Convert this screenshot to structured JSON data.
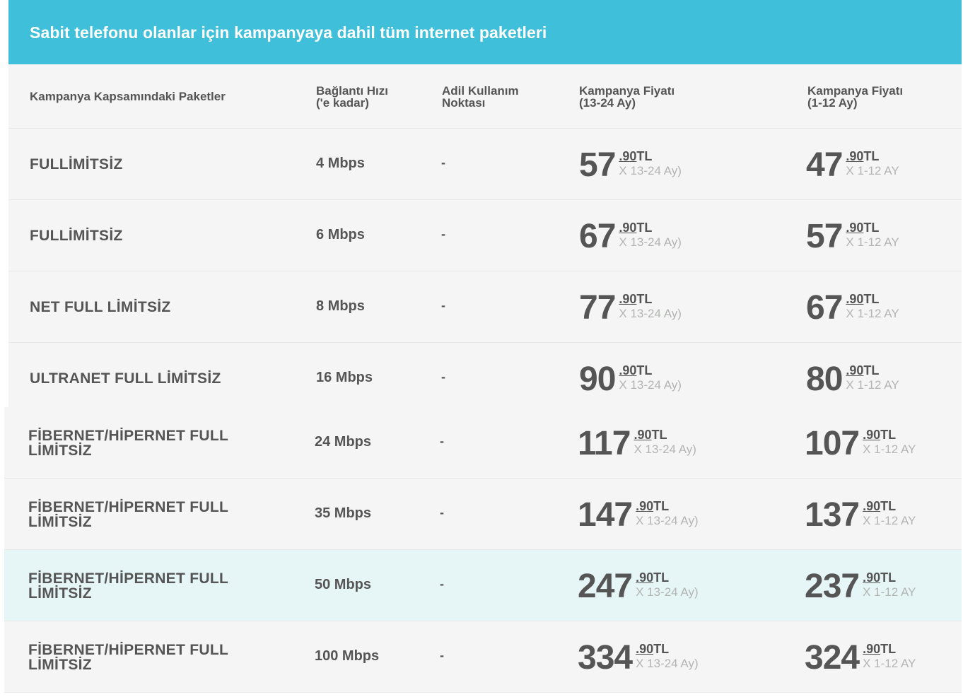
{
  "title": "Sabit telefonu olanlar için kampanyaya dahil tüm internet paketleri",
  "headers": {
    "package": "Kampanya Kapsamındaki Paketler",
    "speed": [
      "Bağlantı Hızı",
      "('e kadar)"
    ],
    "fair_use": [
      "Adil Kullanım",
      "Noktası"
    ],
    "price_13_24": [
      "Kampanya Fiyatı",
      "(13-24 Ay)"
    ],
    "price_1_12": [
      "Kampanya Fiyatı",
      "(1-12 Ay)"
    ]
  },
  "rows": [
    {
      "name": [
        "FULLİMİTSİZ"
      ],
      "speed": "4 Mbps",
      "fair_use": "-",
      "p1": {
        "int": "57",
        "dec": ".90",
        "cur": "TL",
        "term": "X 13-24 Ay)"
      },
      "p2": {
        "int": "47",
        "dec": ".90",
        "cur": "TL",
        "term": "X 1-12 AY"
      }
    },
    {
      "name": [
        "FULLİMİTSİZ"
      ],
      "speed": "6 Mbps",
      "fair_use": "-",
      "p1": {
        "int": "67",
        "dec": ".90",
        "cur": "TL",
        "term": "X 13-24 Ay)"
      },
      "p2": {
        "int": "57",
        "dec": ".90",
        "cur": "TL",
        "term": "X 1-12 AY"
      }
    },
    {
      "name": [
        "NET FULL LİMİTSİZ"
      ],
      "speed": "8 Mbps",
      "fair_use": "-",
      "p1": {
        "int": "77",
        "dec": ".90",
        "cur": "TL",
        "term": "X 13-24 Ay)"
      },
      "p2": {
        "int": "67",
        "dec": ".90",
        "cur": "TL",
        "term": "X 1-12 AY"
      }
    },
    {
      "name": [
        "ULTRANET FULL LİMİTSİZ"
      ],
      "speed": "16 Mbps",
      "fair_use": "-",
      "p1": {
        "int": "90",
        "dec": ".90",
        "cur": "TL",
        "term": "X 13-24 Ay)"
      },
      "p2": {
        "int": "80",
        "dec": ".90",
        "cur": "TL",
        "term": "X 1-12 AY"
      }
    },
    {
      "name": [
        "FİBERNET/HİPERNET FULL",
        "LİMİTSİZ"
      ],
      "speed": "24 Mbps",
      "fair_use": "-",
      "p1": {
        "int": "117",
        "dec": ".90",
        "cur": "TL",
        "term": "X 13-24 Ay)"
      },
      "p2": {
        "int": "107",
        "dec": ".90",
        "cur": "TL",
        "term": "X 1-12 AY"
      }
    },
    {
      "name": [
        "FİBERNET/HİPERNET FULL",
        "LİMİTSİZ"
      ],
      "speed": "35 Mbps",
      "fair_use": "-",
      "p1": {
        "int": "147",
        "dec": ".90",
        "cur": "TL",
        "term": "X 13-24 Ay)"
      },
      "p2": {
        "int": "137",
        "dec": ".90",
        "cur": "TL",
        "term": "X 1-12 AY"
      }
    },
    {
      "name": [
        "FİBERNET/HİPERNET FULL",
        "LİMİTSİZ"
      ],
      "speed": "50 Mbps",
      "fair_use": "-",
      "highlighted": true,
      "p1": {
        "int": "247",
        "dec": ".90",
        "cur": "TL",
        "term": "X 13-24 Ay)"
      },
      "p2": {
        "int": "237",
        "dec": ".90",
        "cur": "TL",
        "term": "X 1-12 AY"
      }
    },
    {
      "name": [
        "FİBERNET/HİPERNET FULL",
        "LİMİTSİZ"
      ],
      "speed": "100 Mbps",
      "fair_use": "-",
      "p1": {
        "int": "334",
        "dec": ".90",
        "cur": "TL",
        "term": "X 13-24 Ay)"
      },
      "p2": {
        "int": "324",
        "dec": ".90",
        "cur": "TL",
        "term": "X 1-12 AY"
      }
    }
  ],
  "colors": {
    "banner": "#3fbfd9",
    "row_bg": "#f4f5f4",
    "highlight_bg": "#e6f5f5",
    "text": "#555555",
    "muted": "#b3b5b3"
  }
}
